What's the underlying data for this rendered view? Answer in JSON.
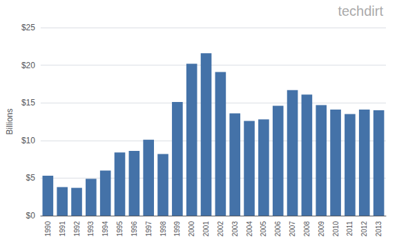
{
  "chart_data": {
    "type": "bar",
    "annotations": [
      "techdirt"
    ],
    "ylabel": "Billions",
    "categories": [
      "1990",
      "1991",
      "1992",
      "1993",
      "1994",
      "1995",
      "1996",
      "1997",
      "1998",
      "1999",
      "2000",
      "2001",
      "2002",
      "2003",
      "2004",
      "2005",
      "2006",
      "2007",
      "2008",
      "2009",
      "2010",
      "2011",
      "2012",
      "2013"
    ],
    "values": [
      5.3,
      3.8,
      3.7,
      4.9,
      6.0,
      8.4,
      8.6,
      10.1,
      8.2,
      15.1,
      20.2,
      21.6,
      19.1,
      13.6,
      12.6,
      12.8,
      14.6,
      16.7,
      16.1,
      14.7,
      14.1,
      13.5,
      14.1,
      14.0
    ],
    "color": "#4472a8",
    "ylim": [
      0,
      25
    ],
    "yticks": [
      {
        "value": 0,
        "label": "$0"
      },
      {
        "value": 5,
        "label": "$5"
      },
      {
        "value": 10,
        "label": "$10"
      },
      {
        "value": 15,
        "label": "$15"
      },
      {
        "value": 20,
        "label": "$20"
      },
      {
        "value": 25,
        "label": "$25"
      }
    ],
    "grid": true
  }
}
